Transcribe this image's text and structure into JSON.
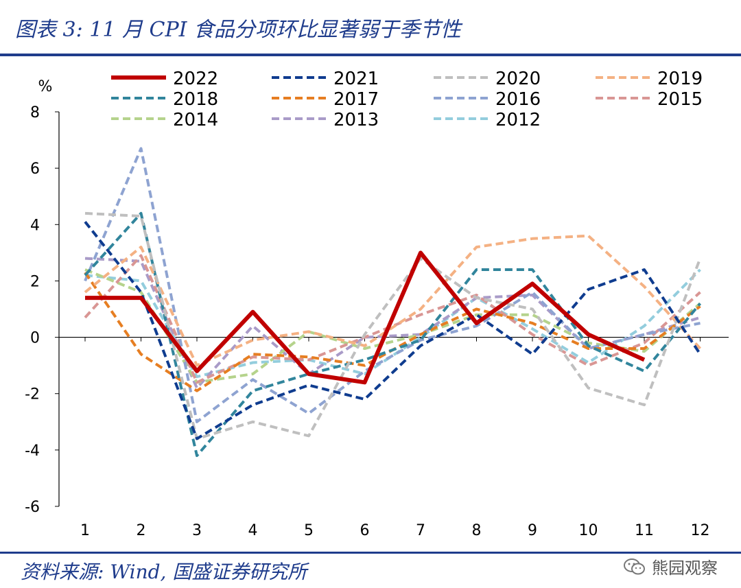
{
  "header": {
    "title": "图表 3:  11 月 CPI 食品分项环比显著弱于季节性"
  },
  "footer": {
    "source": "资料来源:  Wind,  国盛证券研究所",
    "watermark": "熊园观察"
  },
  "chart_data": {
    "type": "line",
    "ylabel": "%",
    "ylim": [
      -6,
      8
    ],
    "yticks": [
      -6,
      -4,
      -2,
      0,
      2,
      4,
      6,
      8
    ],
    "x": [
      1,
      2,
      3,
      4,
      5,
      6,
      7,
      8,
      9,
      10,
      11,
      12
    ],
    "grid": false,
    "legend_position": "top",
    "series": [
      {
        "name": "2022",
        "color": "#c00000",
        "style": "solid",
        "values": [
          1.4,
          1.4,
          -1.2,
          0.9,
          -1.3,
          -1.6,
          3.0,
          0.5,
          1.9,
          0.1,
          -0.8,
          null
        ]
      },
      {
        "name": "2021",
        "color": "#0f3c8f",
        "style": "dashed",
        "values": [
          4.1,
          1.6,
          -3.6,
          -2.4,
          -1.7,
          -2.2,
          -0.3,
          0.8,
          -0.6,
          1.7,
          2.4,
          -0.6
        ]
      },
      {
        "name": "2020",
        "color": "#bfbfbf",
        "style": "dashed",
        "values": [
          4.4,
          4.3,
          -3.6,
          -3.0,
          -3.5,
          0.1,
          2.8,
          1.4,
          1.0,
          -1.8,
          -2.4,
          2.8
        ]
      },
      {
        "name": "2019",
        "color": "#f4b183",
        "style": "dashed",
        "values": [
          1.6,
          3.2,
          -1.0,
          -0.1,
          0.2,
          -0.3,
          1.0,
          3.2,
          3.5,
          3.6,
          1.8,
          -0.4
        ]
      },
      {
        "name": "2018",
        "color": "#31859c",
        "style": "dashed",
        "values": [
          2.2,
          4.4,
          -4.2,
          -1.9,
          -1.3,
          -0.8,
          -0.1,
          2.4,
          2.4,
          -0.3,
          -1.2,
          1.2
        ]
      },
      {
        "name": "2017",
        "color": "#e67e22",
        "style": "dashed",
        "values": [
          2.3,
          -0.6,
          -1.9,
          -0.6,
          -0.7,
          -1.0,
          0.1,
          1.0,
          0.5,
          -0.4,
          -0.4,
          1.1
        ]
      },
      {
        "name": "2016",
        "color": "#8ea3d1",
        "style": "dashed",
        "values": [
          2.0,
          6.7,
          -3.0,
          -1.5,
          -2.7,
          -1.2,
          -0.1,
          0.4,
          1.6,
          -0.4,
          0.1,
          0.5
        ]
      },
      {
        "name": "2015",
        "color": "#d99694",
        "style": "dashed",
        "values": [
          0.7,
          2.9,
          -1.6,
          -0.7,
          -0.8,
          0.0,
          0.8,
          1.5,
          0.1,
          -1.0,
          -0.2,
          1.6
        ]
      },
      {
        "name": "2014",
        "color": "#b5d38c",
        "style": "dashed",
        "values": [
          2.4,
          1.6,
          -1.6,
          -1.3,
          0.2,
          -0.4,
          0.1,
          0.8,
          0.8,
          -0.2,
          -0.5,
          1.2
        ]
      },
      {
        "name": "2013",
        "color": "#a99bc8",
        "style": "dashed",
        "values": [
          2.8,
          2.7,
          -1.8,
          0.4,
          -1.3,
          0.0,
          0.1,
          1.4,
          1.5,
          -0.4,
          0.1,
          0.7
        ]
      },
      {
        "name": "2012",
        "color": "#93cddd",
        "style": "dashed",
        "values": [
          2.2,
          2.0,
          -1.4,
          -0.9,
          -0.8,
          -1.3,
          0.0,
          1.4,
          0.3,
          -0.9,
          0.4,
          2.4
        ]
      }
    ]
  }
}
